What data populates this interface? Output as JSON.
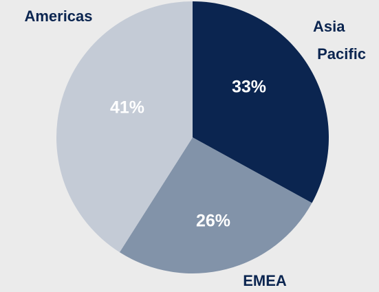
{
  "chart_data": {
    "type": "pie",
    "categories": [
      "Asia Pacific",
      "EMEA",
      "Americas"
    ],
    "values": [
      33,
      26,
      41
    ],
    "value_labels": [
      "33%",
      "26%",
      "41%"
    ],
    "colors": [
      "#0b2550",
      "#8293a9",
      "#c4cbd6"
    ]
  }
}
